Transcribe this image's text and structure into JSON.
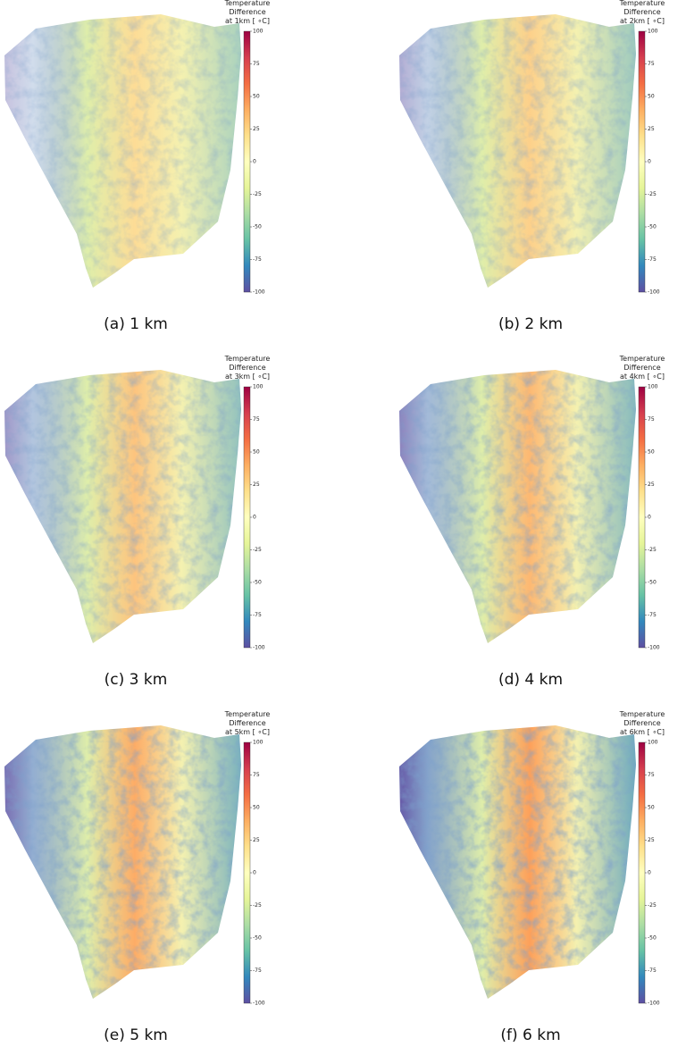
{
  "panels": [
    {
      "colorbar": {
        "title": [
          "Temperature",
          "Difference",
          "at 1km [ ∘C]"
        ],
        "lim": [
          -100,
          100
        ],
        "ticks": [
          100,
          75,
          50,
          25,
          0,
          -25,
          -50,
          -75,
          -100
        ]
      },
      "caption": "(a) 1 km"
    },
    {
      "colorbar": {
        "title": [
          "Temperature",
          "Difference",
          "at 2km [ ∘C]"
        ],
        "lim": [
          -100,
          100
        ],
        "ticks": [
          100,
          75,
          50,
          25,
          0,
          -25,
          -50,
          -75,
          -100
        ]
      },
      "caption": "(b) 2 km"
    },
    {
      "colorbar": {
        "title": [
          "Temperature",
          "Difference",
          "at 3km [ ∘C]"
        ],
        "lim": [
          -100,
          100
        ],
        "ticks": [
          100,
          75,
          50,
          25,
          0,
          -25,
          -50,
          -75,
          -100
        ]
      },
      "caption": "(c) 3 km"
    },
    {
      "colorbar": {
        "title": [
          "Temperature",
          "Difference",
          "at 4km [ ∘C]"
        ],
        "lim": [
          -100,
          100
        ],
        "ticks": [
          100,
          75,
          50,
          25,
          0,
          -25,
          -50,
          -75,
          -100
        ]
      },
      "caption": "(d) 4 km"
    },
    {
      "colorbar": {
        "title": [
          "Temperature",
          "Difference",
          "at 5km [ ∘C]"
        ],
        "lim": [
          -100,
          100
        ],
        "ticks": [
          100,
          75,
          50,
          25,
          0,
          -25,
          -50,
          -75,
          -100
        ]
      },
      "caption": "(e) 5 km"
    },
    {
      "colorbar": {
        "title": [
          "Temperature",
          "Difference",
          "at 6km [ ∘C]"
        ],
        "lim": [
          -100,
          100
        ],
        "ticks": [
          100,
          75,
          50,
          25,
          0,
          -25,
          -50,
          -75,
          -100
        ]
      },
      "caption": "(f) 6 km"
    }
  ]
}
